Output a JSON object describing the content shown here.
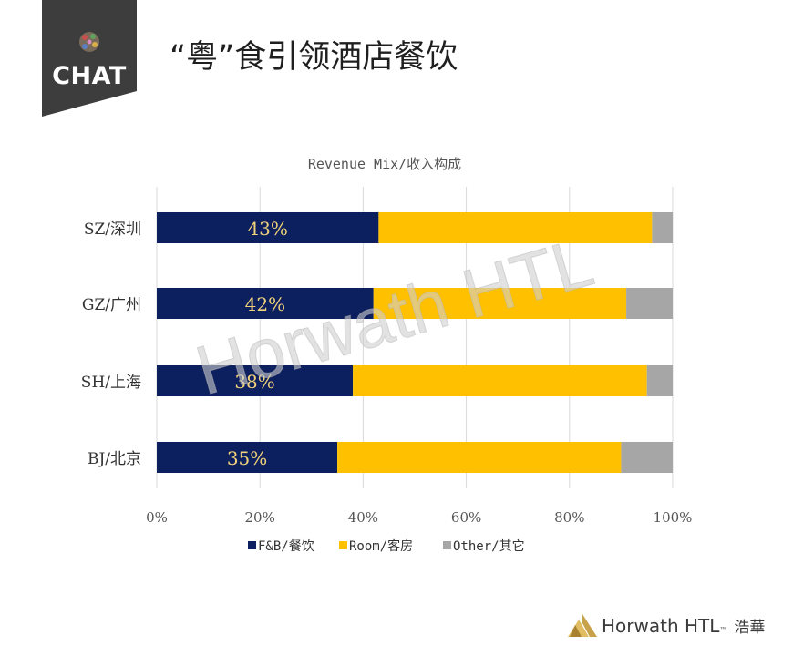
{
  "header": {
    "badge_label": "CHAT",
    "title": "“粤”食引领酒店餐饮"
  },
  "watermark": "Horwath HTL",
  "footer": {
    "brand": "Horwath HTL",
    "tm": "™",
    "brand_cn": "浩華"
  },
  "colors": {
    "fnb": "#0c1f5e",
    "room": "#ffc000",
    "other": "#a6a6a6",
    "badge": "#3d3d3d"
  },
  "chart_data": {
    "type": "bar",
    "orientation": "horizontal",
    "stacked": true,
    "percent_stacked": true,
    "title": "Revenue Mix/收入构成",
    "categories": [
      "SZ/深圳",
      "GZ/广州",
      "SH/上海",
      "BJ/北京"
    ],
    "series": [
      {
        "name": "F&B/餐饮",
        "values": [
          43,
          42,
          38,
          35
        ],
        "labels": [
          "43%",
          "42%",
          "38%",
          "35%"
        ]
      },
      {
        "name": "Room/客房",
        "values": [
          53,
          49,
          57,
          55
        ]
      },
      {
        "name": "Other/其它",
        "values": [
          4,
          9,
          5,
          10
        ]
      }
    ],
    "x_ticks": [
      "0%",
      "20%",
      "40%",
      "60%",
      "80%",
      "100%"
    ],
    "xlim": [
      0,
      100
    ],
    "grid": "vertical",
    "legend_position": "bottom"
  }
}
